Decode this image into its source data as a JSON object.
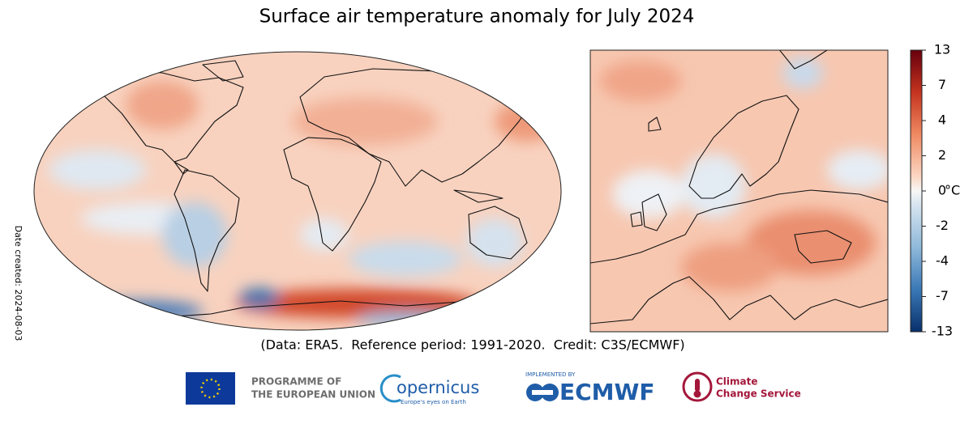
{
  "title": "Surface air temperature anomaly for July 2024",
  "colorbar": {
    "ticks": [
      13,
      7,
      4,
      2,
      0,
      -2,
      -4,
      -7,
      -13
    ],
    "unit": "°C"
  },
  "credit": "(Data: ERA5.  Reference period: 1991-2020.  Credit: C3S/ECMWF)",
  "date_created": "Date created: 2024-08-03",
  "logos": {
    "eu": [
      "PROGRAMME OF",
      "THE EUROPEAN UNION"
    ],
    "copernicus": {
      "name": "opernicus",
      "tagline": "Europe's eyes on Earth"
    },
    "ecmwf": {
      "note": "IMPLEMENTED BY",
      "name": "ECMWF"
    },
    "c3s": [
      "Climate",
      "Change Service"
    ]
  }
}
